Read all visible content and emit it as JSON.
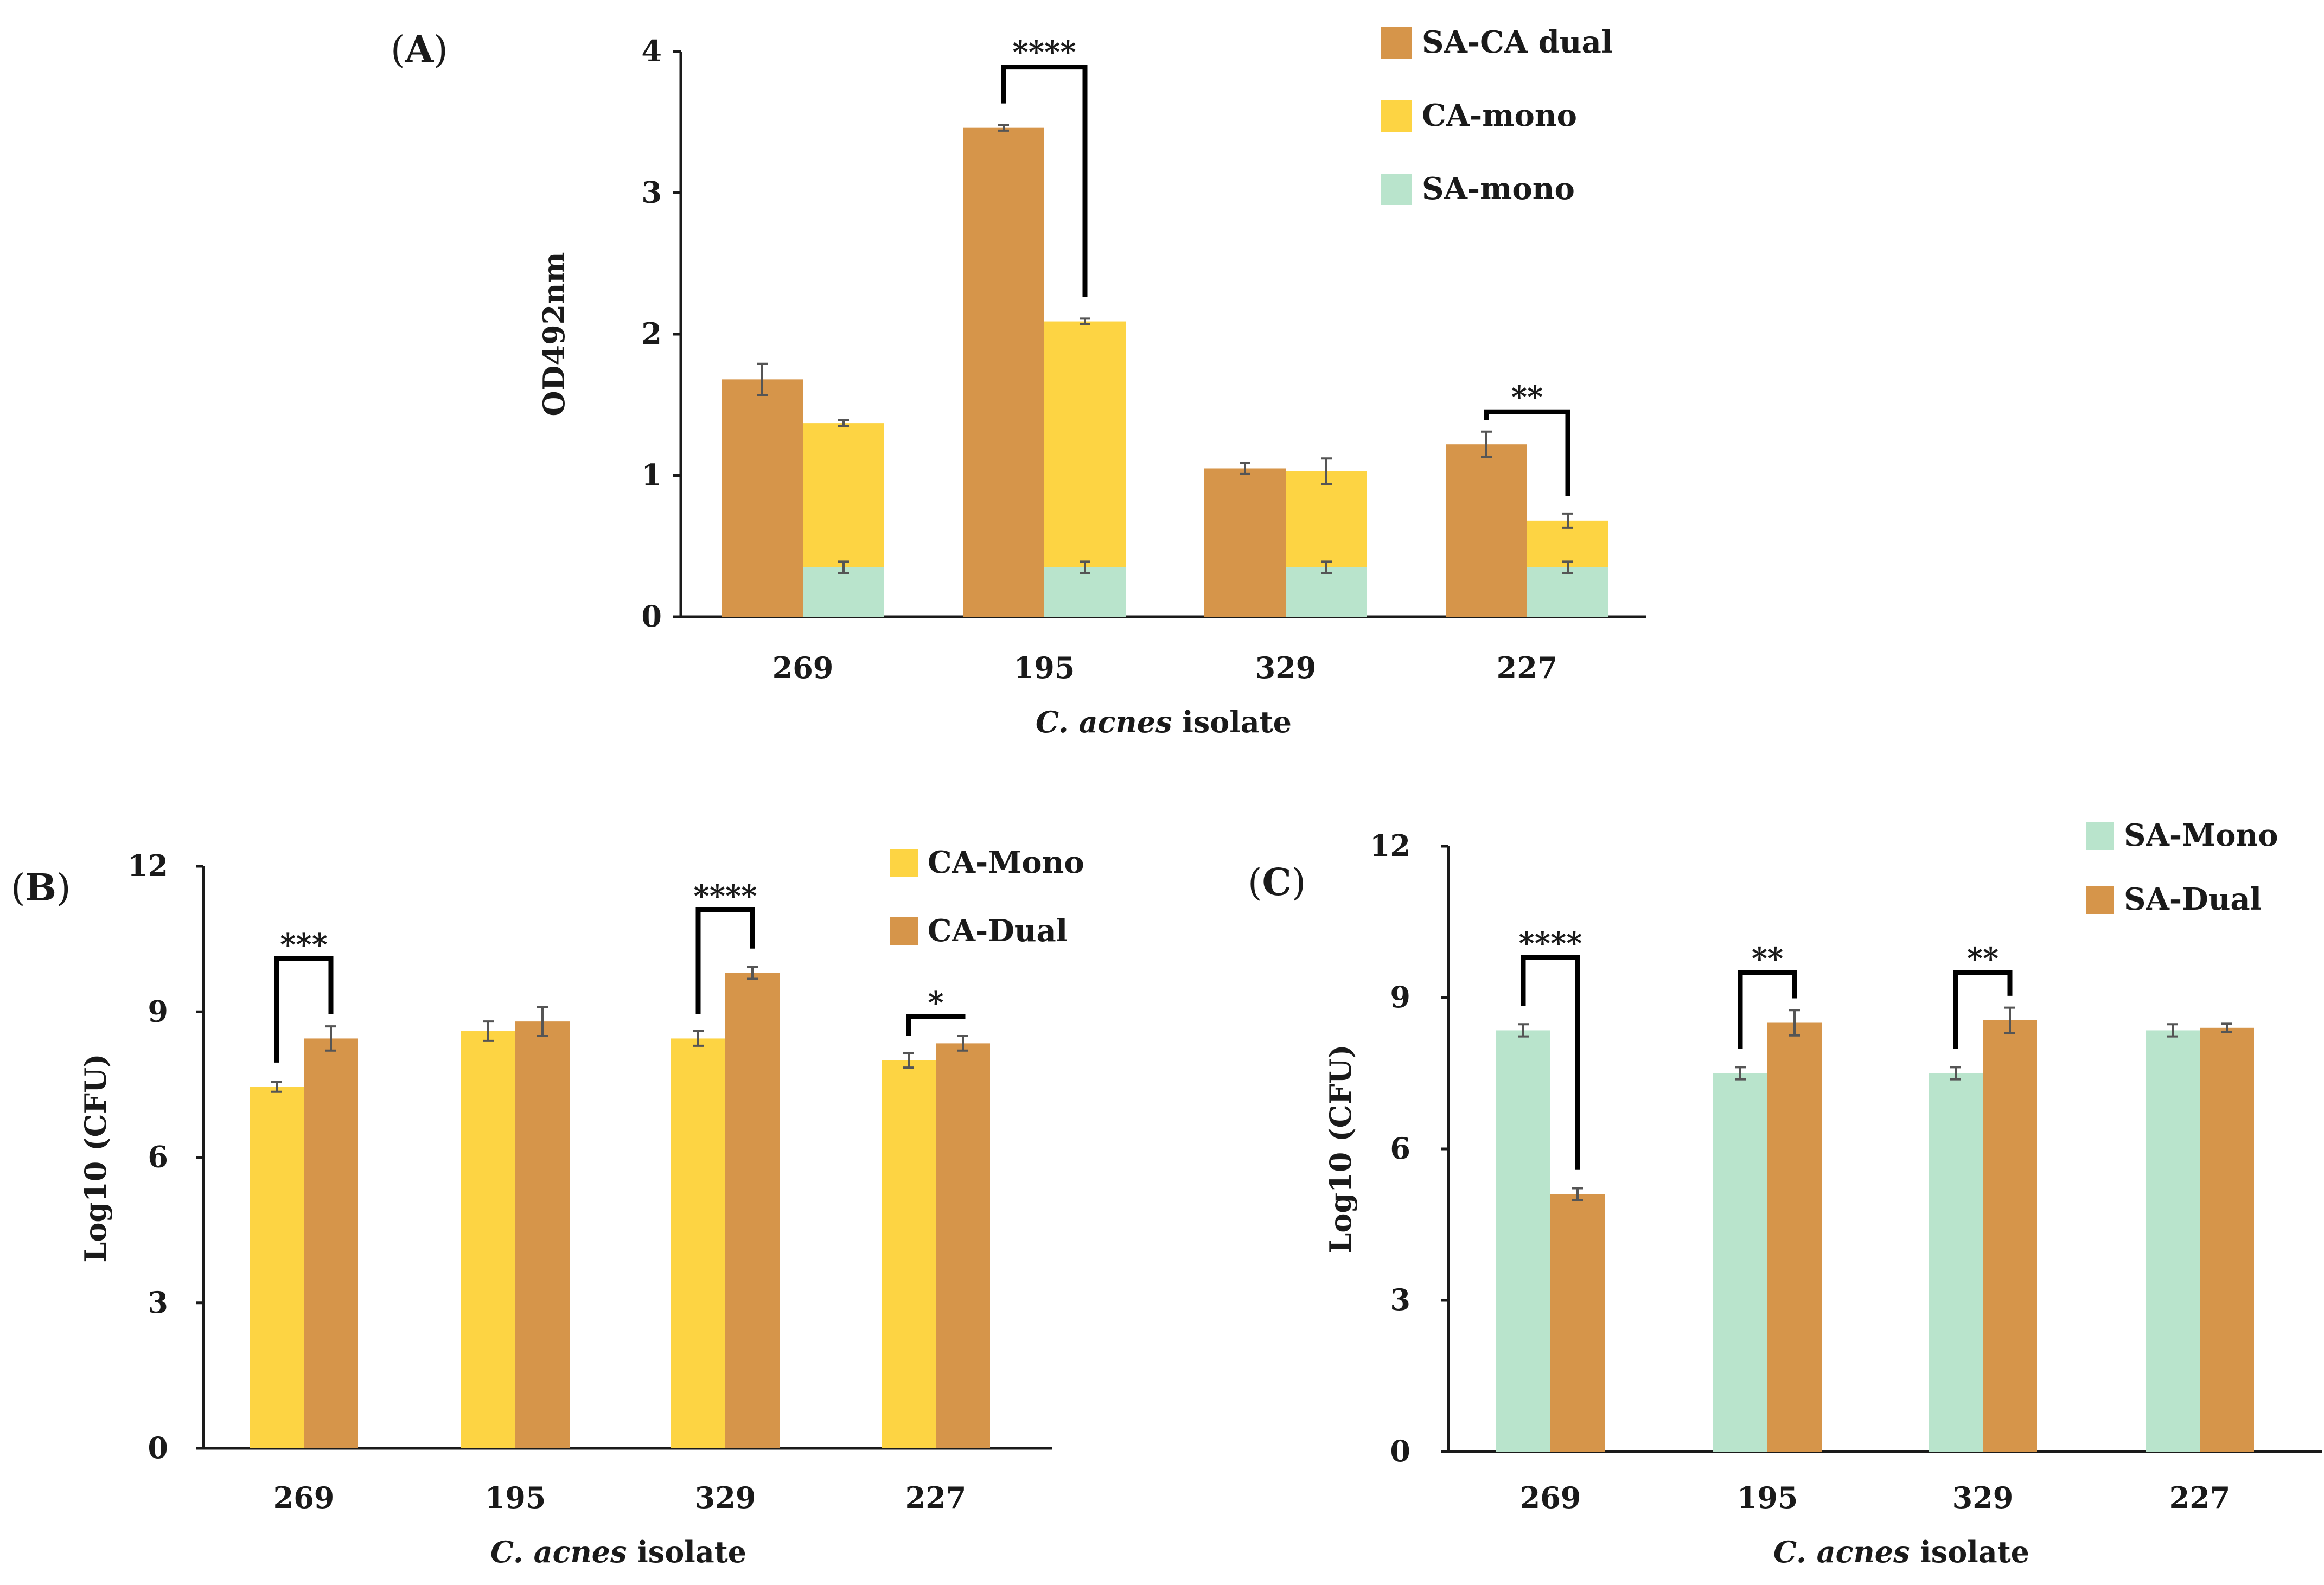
{
  "colors": {
    "dual": "#d6954a",
    "ca_mono": "#fdd443",
    "sa_mono": "#b9e4cc",
    "axis": "#1a1a1a",
    "error": "#555555"
  },
  "chart_data": [
    {
      "id": "A",
      "panel_label_open": "(",
      "panel_label_letter": "A",
      "panel_label_close": ")",
      "type": "bar",
      "stacked_overlay": true,
      "categories": [
        "269",
        "195",
        "329",
        "227"
      ],
      "ylabel": "OD492nm",
      "xlabel_italic": "C. acnes",
      "xlabel_rest": " isolate",
      "ylim": [
        0,
        4
      ],
      "yticks": [
        0,
        1,
        2,
        3,
        4
      ],
      "series": [
        {
          "name": "SA-CA dual",
          "key": "dual",
          "values": [
            1.68,
            3.46,
            1.05,
            1.22
          ],
          "errors": [
            0.11,
            0.02,
            0.04,
            0.09
          ],
          "slot": 0
        },
        {
          "name": "CA-mono",
          "key": "ca_mono",
          "values": [
            1.37,
            2.09,
            1.03,
            0.68
          ],
          "errors": [
            0.02,
            0.02,
            0.09,
            0.05
          ],
          "slot": 1
        },
        {
          "name": "SA-mono",
          "key": "sa_mono",
          "values": [
            0.35,
            0.35,
            0.35,
            0.35
          ],
          "errors": [
            0.04,
            0.04,
            0.04,
            0.04
          ],
          "slot": 1
        }
      ],
      "legend_order": [
        "SA-CA dual",
        "CA-mono",
        "SA-mono"
      ],
      "legend_position": "top-right",
      "significance": [
        {
          "category": "195",
          "label": "****",
          "from_value": 3.46,
          "to_value": 2.09,
          "top_value": 3.89
        },
        {
          "category": "227",
          "label": "**",
          "from_value": 1.22,
          "to_value": 0.68,
          "top_value": 1.45
        }
      ]
    },
    {
      "id": "B",
      "panel_label_open": "(",
      "panel_label_letter": "B",
      "panel_label_close": ")",
      "type": "bar",
      "categories": [
        "269",
        "195",
        "329",
        "227"
      ],
      "ylabel": "Log10 (CFU)",
      "xlabel_italic": "C. acnes",
      "xlabel_rest": " isolate",
      "ylim": [
        0,
        12
      ],
      "yticks": [
        0,
        3,
        6,
        9,
        12
      ],
      "series": [
        {
          "name": "CA-Mono",
          "key": "ca_mono",
          "values": [
            7.45,
            8.6,
            8.45,
            8.0
          ],
          "errors": [
            0.1,
            0.2,
            0.15,
            0.15
          ],
          "slot": 0
        },
        {
          "name": "CA-Dual",
          "key": "dual",
          "values": [
            8.45,
            8.8,
            9.8,
            8.35
          ],
          "errors": [
            0.25,
            0.3,
            0.12,
            0.15
          ],
          "slot": 1
        }
      ],
      "legend_order": [
        "CA-Mono",
        "CA-Dual"
      ],
      "legend_position": "top-right",
      "significance": [
        {
          "category": "269",
          "label": "***",
          "from_value": 7.45,
          "to_value": 8.45,
          "top_value": 10.1
        },
        {
          "category": "329",
          "label": "****",
          "from_value": 8.45,
          "to_value": 9.8,
          "top_value": 11.1
        },
        {
          "category": "227",
          "label": "*",
          "from_value": 8.0,
          "to_value": 8.35,
          "top_value": 8.9
        }
      ]
    },
    {
      "id": "C",
      "panel_label_open": "(",
      "panel_label_letter": "C",
      "panel_label_close": ")",
      "type": "bar",
      "categories": [
        "269",
        "195",
        "329",
        "227"
      ],
      "ylabel": "Log10 (CFU)",
      "xlabel_italic": "C. acnes",
      "xlabel_rest": " isolate",
      "ylim": [
        0,
        12
      ],
      "yticks": [
        0,
        3,
        6,
        9,
        12
      ],
      "series": [
        {
          "name": "SA-Mono",
          "key": "sa_mono",
          "values": [
            8.35,
            7.5,
            7.5,
            8.35
          ],
          "errors": [
            0.12,
            0.12,
            0.12,
            0.12
          ],
          "slot": 0
        },
        {
          "name": "SA-Dual",
          "key": "dual",
          "values": [
            5.1,
            8.5,
            8.55,
            8.4
          ],
          "errors": [
            0.12,
            0.25,
            0.25,
            0.08
          ],
          "slot": 1
        }
      ],
      "legend_order": [
        "SA-Mono",
        "SA-Dual"
      ],
      "legend_position": "top-right",
      "significance": [
        {
          "category": "269",
          "label": "****",
          "from_value": 8.35,
          "to_value": 5.1,
          "top_value": 9.8
        },
        {
          "category": "195",
          "label": "**",
          "from_value": 7.5,
          "to_value": 8.5,
          "top_value": 9.5
        },
        {
          "category": "329",
          "label": "**",
          "from_value": 7.5,
          "to_value": 8.55,
          "top_value": 9.5
        }
      ]
    }
  ]
}
